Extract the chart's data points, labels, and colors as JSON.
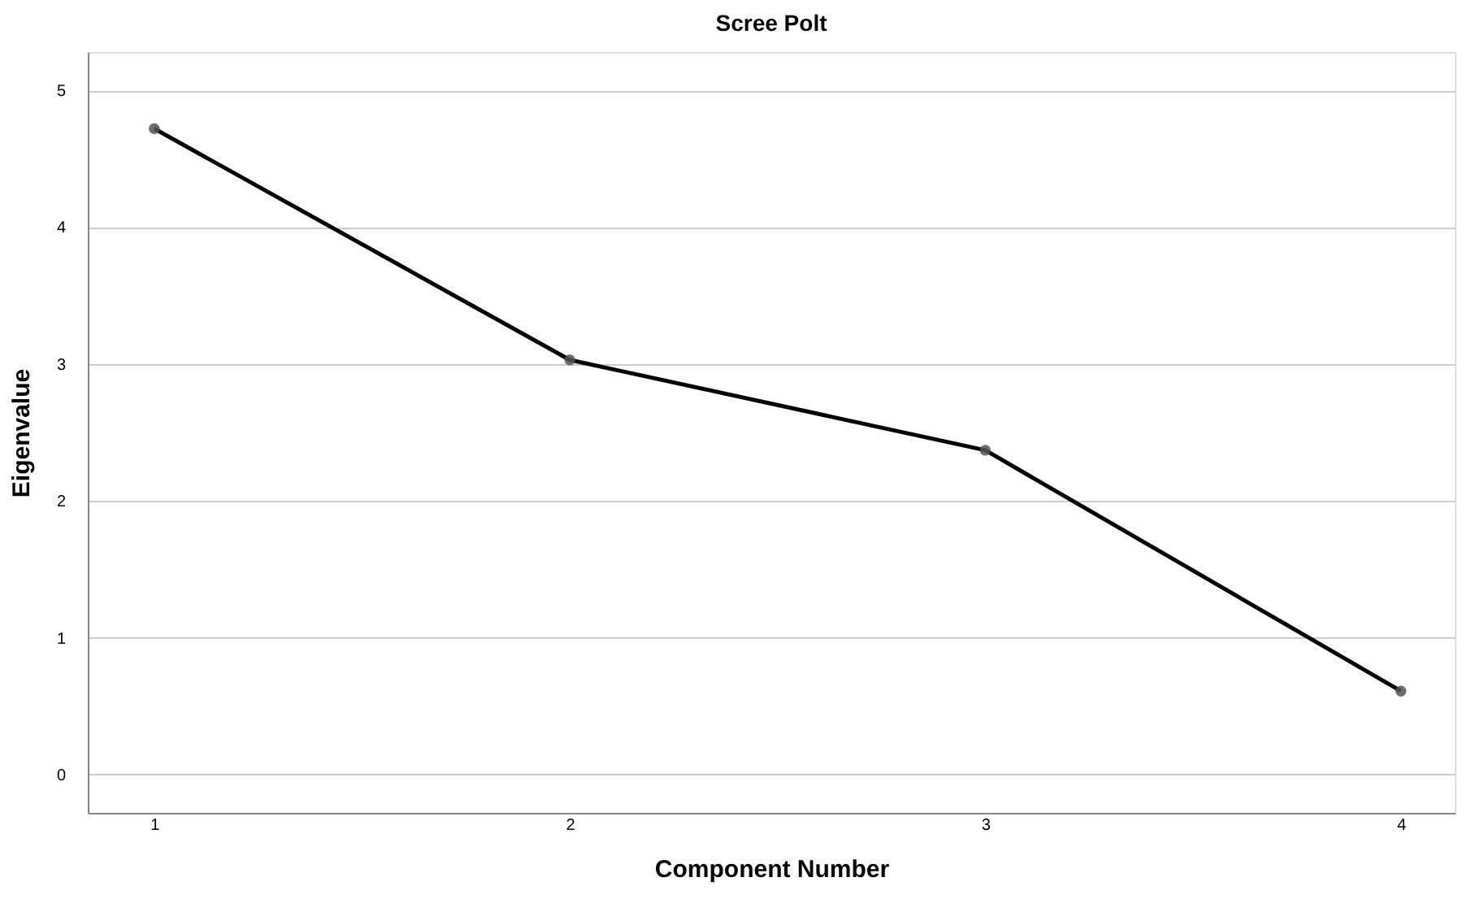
{
  "chart_data": {
    "type": "line",
    "title": "Scree Polt",
    "xlabel": "Component Number",
    "ylabel": "Eigenvalue",
    "x": [
      1,
      2,
      3,
      4
    ],
    "series": [
      {
        "color": "#000000",
        "values": [
          4.72,
          3.03,
          2.37,
          0.61
        ]
      }
    ],
    "xlim": [
      0.84,
      4.13
    ],
    "xticks": [
      1,
      2,
      3,
      4
    ],
    "ylim": [
      -0.28,
      5.28
    ],
    "yticks": [
      0,
      1,
      2,
      3,
      4,
      5
    ],
    "grid": "y",
    "marker": "circle",
    "line_style": "solid"
  }
}
